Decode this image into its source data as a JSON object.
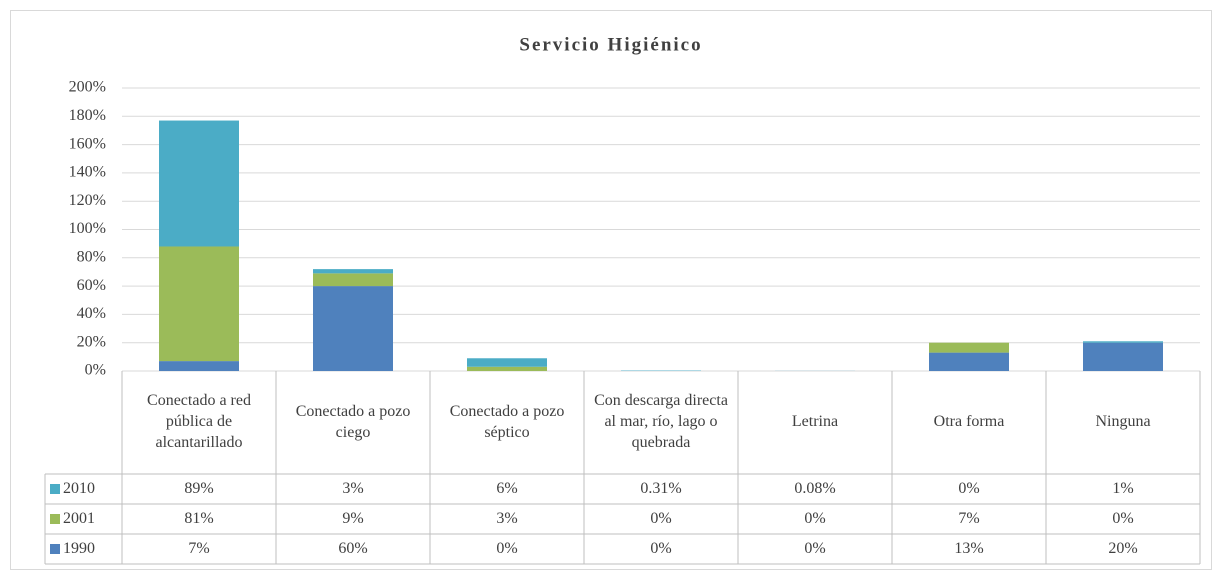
{
  "chart_data": {
    "type": "bar",
    "stacked": true,
    "title": "Servicio Higiénico",
    "categories": [
      "Conectado a red pública de alcantarillado",
      "Conectado a pozo ciego",
      "Conectado a pozo séptico",
      "Con descarga directa al mar, río, lago o quebrada",
      "Letrina",
      "Otra forma",
      "Ninguna"
    ],
    "series": [
      {
        "name": "1990",
        "color": "#4f81bd",
        "values": [
          7,
          60,
          0,
          0,
          0,
          13,
          20
        ],
        "value_labels": [
          "7%",
          "60%",
          "0%",
          "0%",
          "0%",
          "13%",
          "20%"
        ]
      },
      {
        "name": "2001",
        "color": "#9bbb59",
        "values": [
          81,
          9,
          3,
          0,
          0,
          7,
          0
        ],
        "value_labels": [
          "81%",
          "9%",
          "3%",
          "0%",
          "0%",
          "7%",
          "0%"
        ]
      },
      {
        "name": "2010",
        "color": "#4bacc6",
        "values": [
          89,
          3,
          6,
          0.31,
          0.08,
          0,
          1
        ],
        "value_labels": [
          "89%",
          "3%",
          "6%",
          "0.31%",
          "0.08%",
          "0%",
          "1%"
        ]
      }
    ],
    "ylim": [
      0,
      200
    ],
    "yticks": [
      {
        "value": 0,
        "label": "0%"
      },
      {
        "value": 20,
        "label": "20%"
      },
      {
        "value": 40,
        "label": "40%"
      },
      {
        "value": 60,
        "label": "60%"
      },
      {
        "value": 80,
        "label": "80%"
      },
      {
        "value": 100,
        "label": "100%"
      },
      {
        "value": 120,
        "label": "120%"
      },
      {
        "value": 140,
        "label": "140%"
      },
      {
        "value": 160,
        "label": "160%"
      },
      {
        "value": 180,
        "label": "180%"
      },
      {
        "value": 200,
        "label": "200%"
      }
    ],
    "grid": true
  }
}
